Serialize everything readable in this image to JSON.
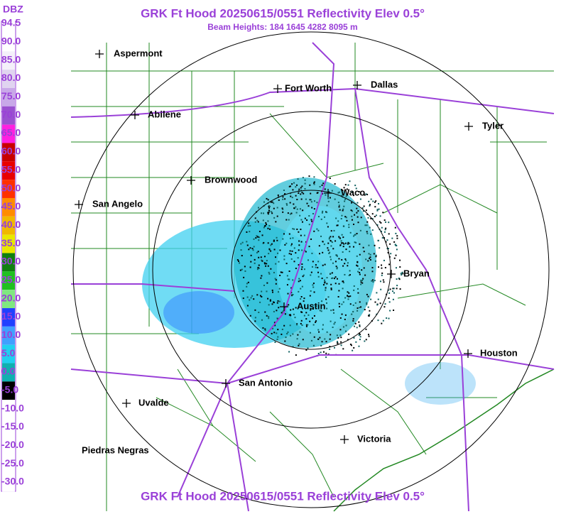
{
  "header": {
    "title": "GRK Ft Hood 20250615/0551 Reflectivity Elev 0.5°",
    "subtitle": "Beam Heights: 184 1645 4282 8095 m"
  },
  "footer": {
    "title": "GRK Ft Hood 20250615/0551 Reflectivity Elev 0.5°"
  },
  "legend": {
    "title": "DBZ",
    "labels": [
      "94.5",
      "90.0",
      "85.0",
      "80.0",
      "75.0",
      "70.0",
      "65.0",
      "60.0",
      "55.0",
      "50.0",
      "45.0",
      "40.0",
      "35.0",
      "30.0",
      "25.0",
      "20.0",
      "15.0",
      "10.0",
      "5.0",
      "0.0",
      "-5.0",
      "-10.0",
      "-15.0",
      "-20.0",
      "-25.0",
      "-30.0"
    ],
    "colors": [
      "#ffffff",
      "#ffffff",
      "#f4f0fa",
      "#e0d4f0",
      "#c8a8e8",
      "#9a50d0",
      "#ff20e0",
      "#c80000",
      "#e80000",
      "#ff3000",
      "#ff8c00",
      "#f0b800",
      "#e8e800",
      "#108010",
      "#20c020",
      "#80e880",
      "#2040ff",
      "#40a0ff",
      "#20d0f0",
      "#10b0b0",
      "#000000",
      "#ffffff",
      "#ffffff",
      "#ffffff",
      "#ffffff",
      "#ffffff"
    ]
  },
  "cities": [
    {
      "name": "Aspermont"
    },
    {
      "name": "Fort Worth"
    },
    {
      "name": "Dallas"
    },
    {
      "name": "Abilene"
    },
    {
      "name": "Tyler"
    },
    {
      "name": "Brownwood"
    },
    {
      "name": "Waco"
    },
    {
      "name": "San Angelo"
    },
    {
      "name": "Bryan"
    },
    {
      "name": "Austin"
    },
    {
      "name": "Houston"
    },
    {
      "name": "San Antonio"
    },
    {
      "name": "Uvalde"
    },
    {
      "name": "Victoria"
    },
    {
      "name": "Piedras Negras"
    }
  ]
}
